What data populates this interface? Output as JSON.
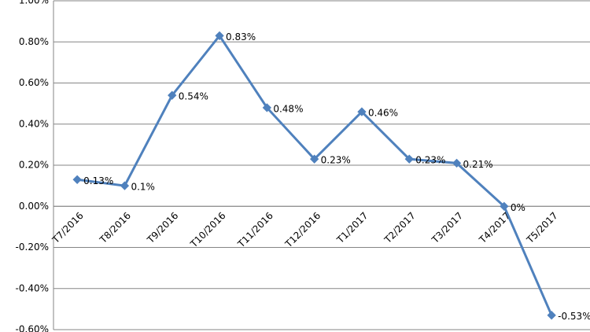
{
  "chart_data": {
    "type": "line",
    "categories": [
      "T7/2016",
      "T8/2016",
      "T9/2016",
      "T10/2016",
      "T11/2016",
      "T12/2016",
      "T1/2017",
      "T2/2017",
      "T3/2017",
      "T4/2017",
      "T5/2017"
    ],
    "series": [
      {
        "color": "#4f81bd",
        "values": [
          0.13,
          0.1,
          0.54,
          0.83,
          0.48,
          0.23,
          0.46,
          0.23,
          0.21,
          0,
          -0.53
        ],
        "value_labels": [
          "0.13%",
          "0.1%",
          "0.54%",
          "0.83%",
          "0.48%",
          "0.23%",
          "0.46%",
          "0.23%",
          "0.21%",
          "0%",
          "-0.53%"
        ]
      }
    ],
    "ylim": [
      -0.6,
      1.0
    ],
    "yticks": [
      {
        "value": -0.6,
        "label": "-0.60%"
      },
      {
        "value": -0.4,
        "label": "-0.40%"
      },
      {
        "value": -0.2,
        "label": "-0.20%"
      },
      {
        "value": 0,
        "label": "0.00%"
      },
      {
        "value": 0.2,
        "label": "0.20%"
      },
      {
        "value": 0.4,
        "label": "0.40%"
      },
      {
        "value": 0.6,
        "label": "0.60%"
      },
      {
        "value": 0.8,
        "label": "0.80%"
      },
      {
        "value": 1.0,
        "label": "1.00%"
      }
    ],
    "grid": true
  }
}
